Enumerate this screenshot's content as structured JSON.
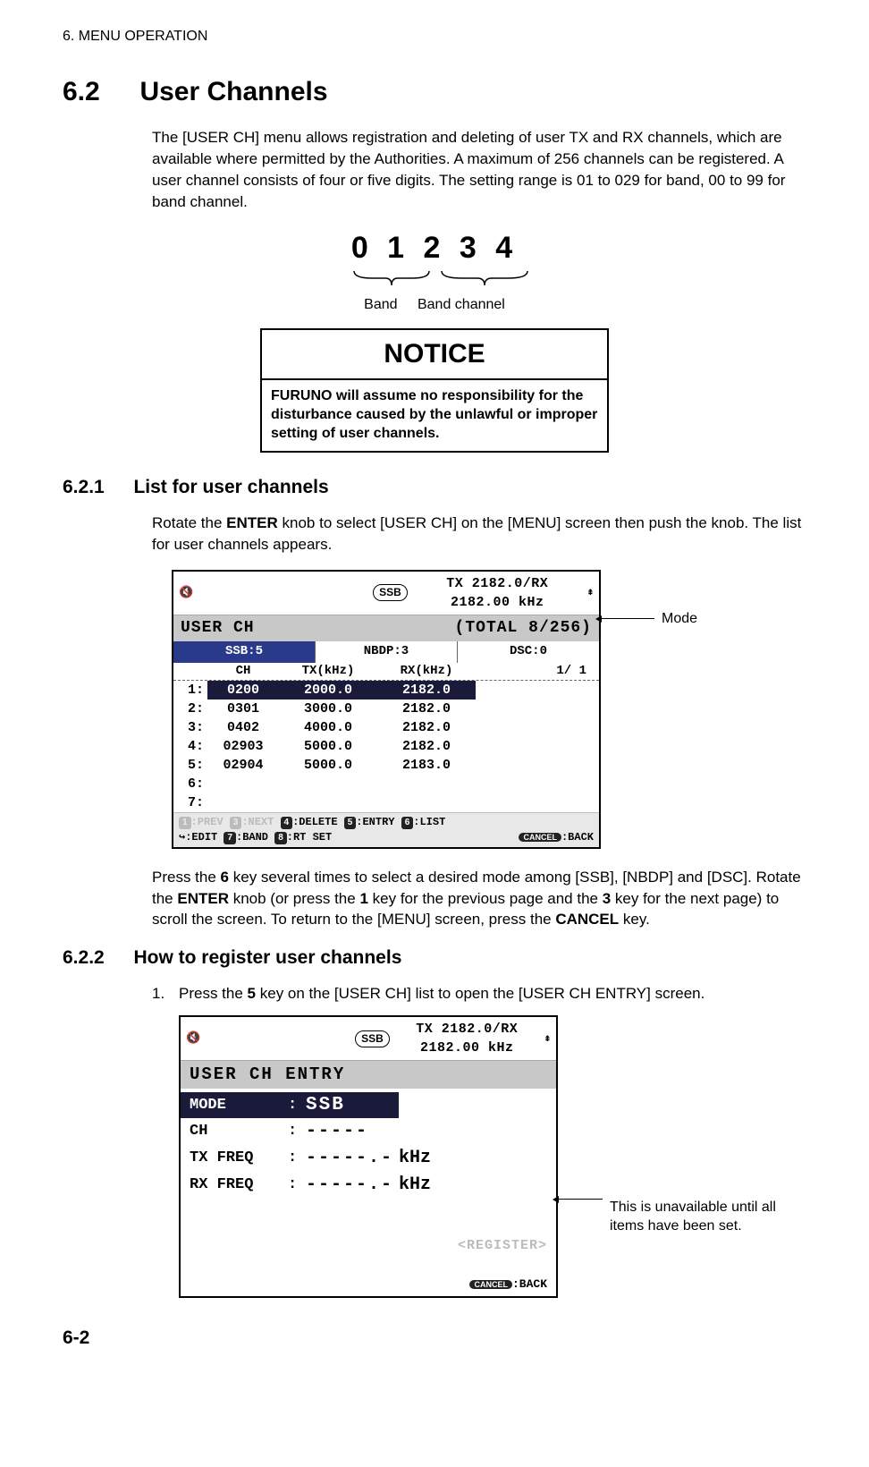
{
  "chapter": "6.  MENU OPERATION",
  "section": {
    "num": "6.2",
    "title": "User Channels"
  },
  "intro": "The [USER CH] menu allows registration and deleting of user TX and RX channels, which are available where permitted by the Authorities. A maximum of 256 channels can be registered. A user channel consists of four or five digits. The setting range is 01 to 029 for band, 00 to 99 for band channel.",
  "channel_digits": "0 1 2 3 4",
  "brace_labels": {
    "band": "Band",
    "band_channel": "Band channel"
  },
  "notice": {
    "title": "NOTICE",
    "body": "FURUNO will assume no responsibility for the disturbance caused by the unlawful or improper setting of user channels."
  },
  "sub1": {
    "num": "6.2.1",
    "title": "List for user channels",
    "p1_a": "Rotate the ",
    "p1_b": "ENTER",
    "p1_c": " knob to select [USER CH] on the [MENU] screen then push the knob. The list for user channels appears.",
    "p2_a": "Press the ",
    "p2_b": "6",
    "p2_c": " key several times to select a desired mode among [SSB], [NBDP] and [DSC]. Rotate the ",
    "p2_d": "ENTER",
    "p2_e": " knob (or press the ",
    "p2_f": "1",
    "p2_g": " key for the previous page and the ",
    "p2_h": "3",
    "p2_i": " key for the next page) to scroll the screen. To return to the [MENU] screen, press the ",
    "p2_j": "CANCEL",
    "p2_k": " key."
  },
  "list_screen": {
    "ssb_badge": "SSB",
    "freq_line": "TX 2182.0/RX 2182.00 kHz",
    "title_left": "USER CH",
    "title_right": "(TOTAL   8/256)",
    "tabs": {
      "ssb": "SSB:5",
      "nbdp": "NBDP:3",
      "dsc": "DSC:0"
    },
    "cols": {
      "ch": "CH",
      "tx": "TX(kHz)",
      "rx": "RX(kHz)",
      "page": "1/ 1"
    },
    "rows": [
      {
        "n": "1:",
        "ch": "0200",
        "tx": "2000.0",
        "rx": "2182.0",
        "selected": true
      },
      {
        "n": "2:",
        "ch": "0301",
        "tx": "3000.0",
        "rx": "2182.0",
        "selected": false
      },
      {
        "n": "3:",
        "ch": "0402",
        "tx": "4000.0",
        "rx": "2182.0",
        "selected": false
      },
      {
        "n": "4:",
        "ch": "02903",
        "tx": "5000.0",
        "rx": "2182.0",
        "selected": false
      },
      {
        "n": "5:",
        "ch": "02904",
        "tx": "5000.0",
        "rx": "2183.0",
        "selected": false
      },
      {
        "n": "6:",
        "ch": "",
        "tx": "",
        "rx": "",
        "selected": false
      },
      {
        "n": "7:",
        "ch": "",
        "tx": "",
        "rx": "",
        "selected": false
      }
    ],
    "footer1": {
      "k1": "1",
      "t1": ":PREV ",
      "k3": "3",
      "t3": ":NEXT ",
      "k4": "4",
      "t4": ":DELETE ",
      "k5": "5",
      "t5": ":ENTRY ",
      "k6": "6",
      "t6": ":LIST"
    },
    "footer2": {
      "edit": ":EDIT ",
      "k7": "7",
      "t7": ":BAND ",
      "k8": "8",
      "t8": ":RT SET",
      "cancel": "CANCEL",
      "back": ":BACK"
    },
    "mode_label": "Mode"
  },
  "sub2": {
    "num": "6.2.2",
    "title": "How to register user channels",
    "step1_num": "1.",
    "step1_a": "Press the ",
    "step1_b": "5",
    "step1_c": " key on the [USER CH] list to open the [USER CH ENTRY] screen."
  },
  "entry_screen": {
    "ssb_badge": "SSB",
    "freq_line": "TX 2182.0/RX 2182.00 kHz",
    "title": "USER CH ENTRY",
    "mode_label": "MODE",
    "mode_val": "SSB",
    "ch_label": "CH",
    "ch_val": "-----",
    "tx_label": "TX FREQ ",
    "tx_val": "-----.-",
    "tx_unit": "kHz",
    "rx_label": "RX FREQ ",
    "rx_val": "-----.-",
    "rx_unit": "kHz",
    "register": "<REGISTER>",
    "cancel": "CANCEL",
    "back": ":BACK",
    "callout": "This is unavailable until all items have been set."
  },
  "page_num": "6-2"
}
